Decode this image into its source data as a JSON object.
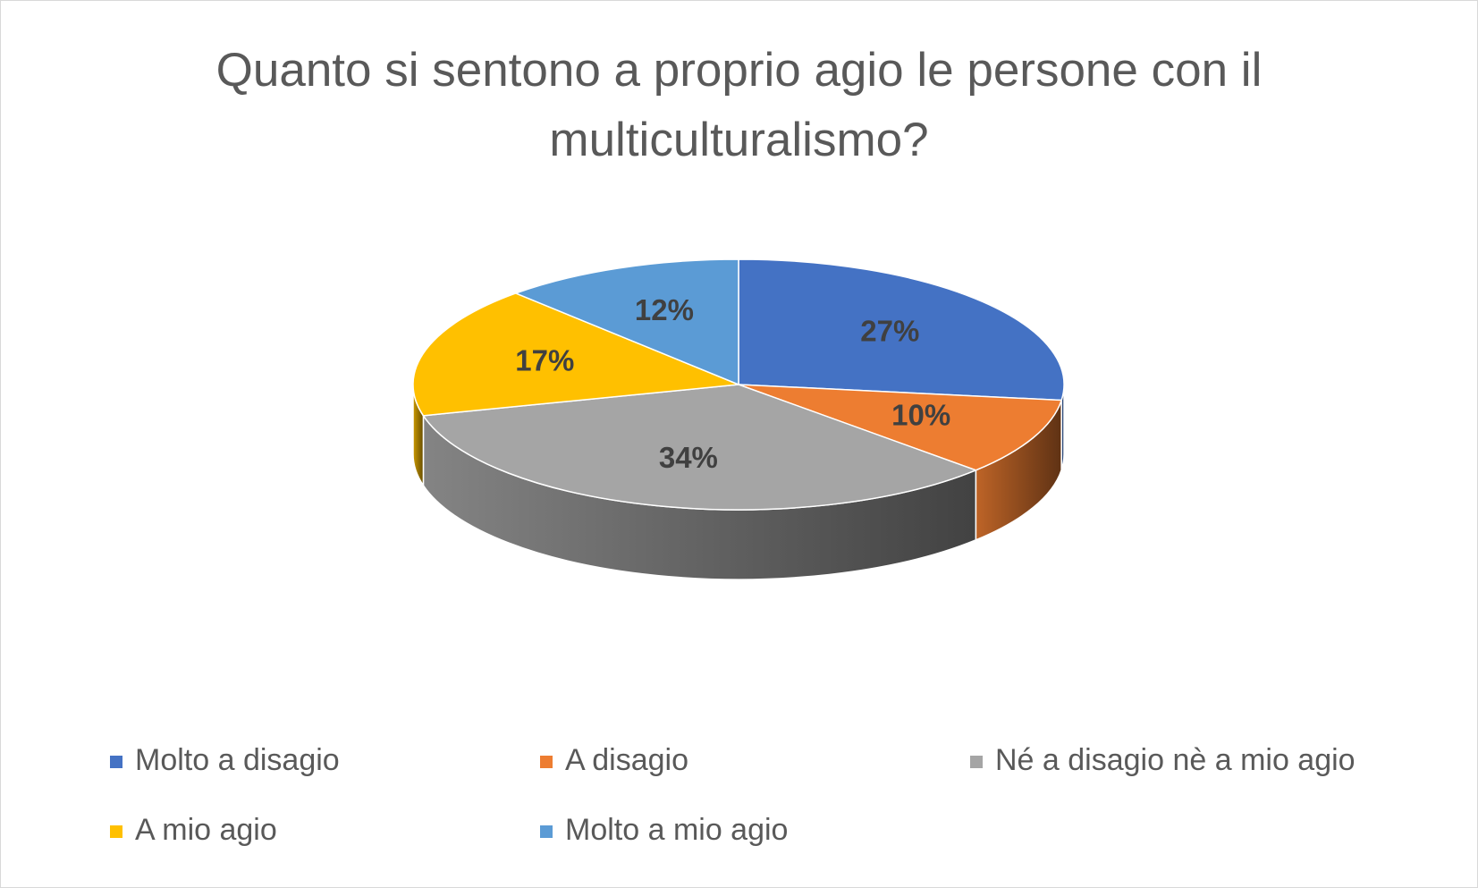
{
  "chart_data": {
    "type": "pie3d",
    "title": "Quanto si sentono a proprio agio le persone con il multiculturalismo?",
    "categories": [
      "Molto a disagio",
      "A disagio",
      "Né a disagio nè a mio agio",
      "A mio agio",
      "Molto a mio agio"
    ],
    "values": [
      27,
      10,
      34,
      17,
      12
    ],
    "value_labels": [
      "27%",
      "10%",
      "34%",
      "17%",
      "12%"
    ],
    "colors": [
      "#4472c4",
      "#ed7d31",
      "#a5a5a5",
      "#ffc000",
      "#5b9bd5"
    ],
    "legend": "bottom"
  }
}
